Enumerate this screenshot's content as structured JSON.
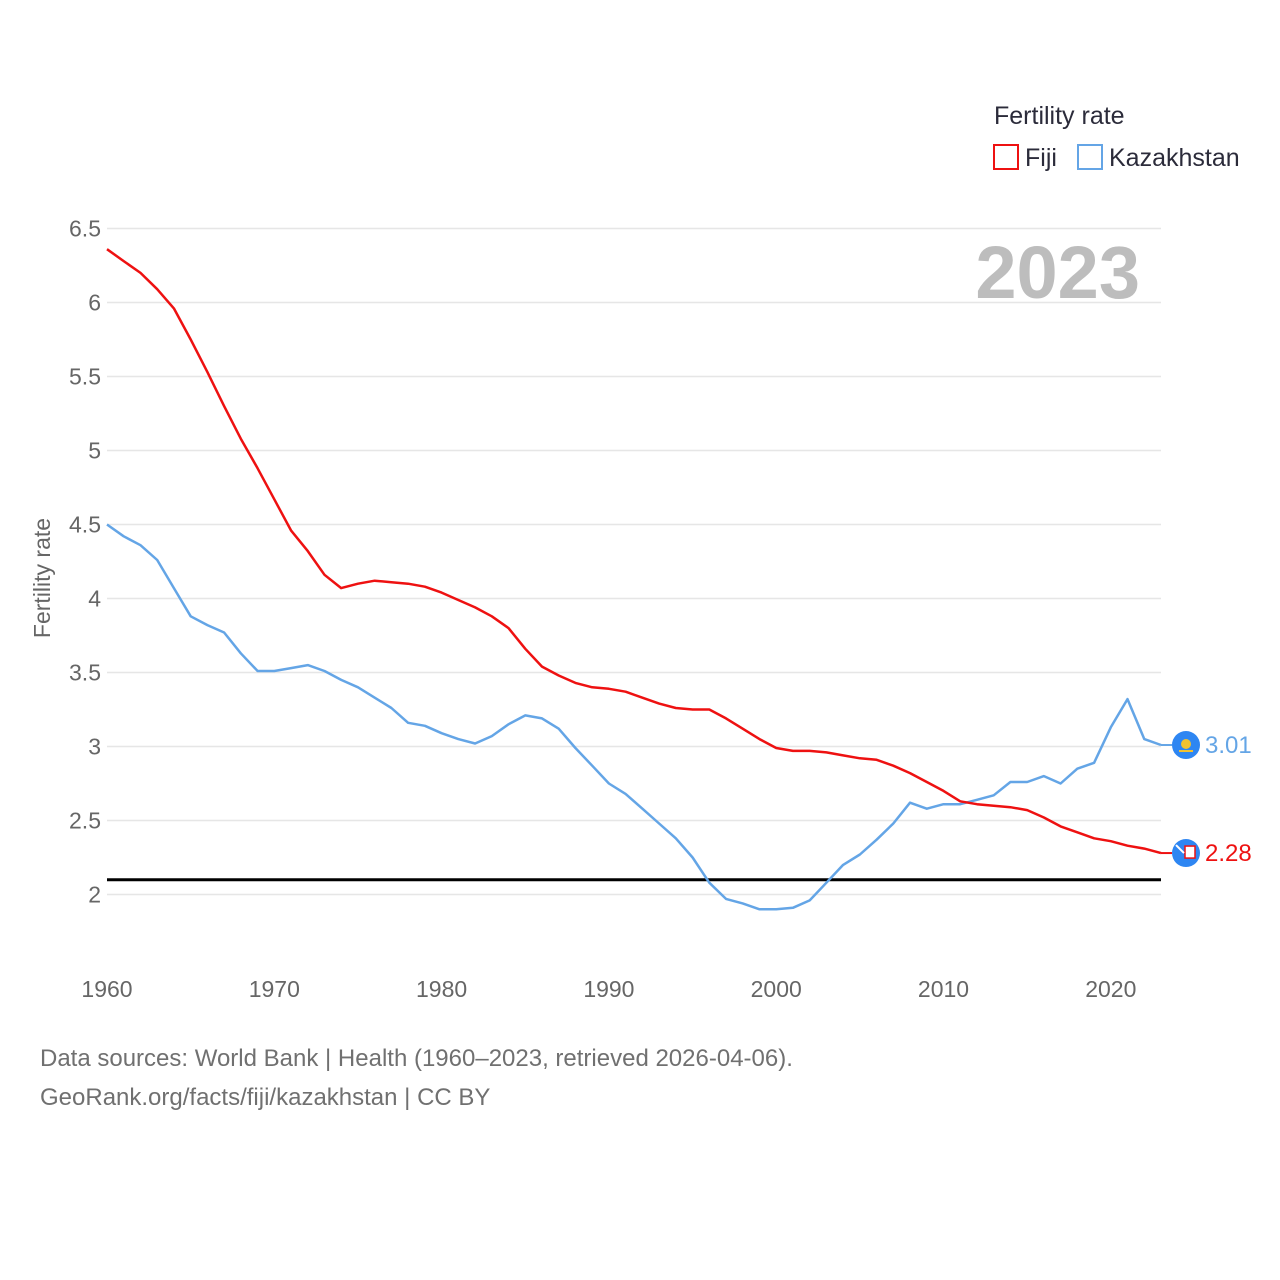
{
  "chart_data": {
    "type": "line",
    "title": "",
    "ylabel": "Fertility rate",
    "xlabel": "",
    "xlim": [
      1960,
      2023
    ],
    "ylim": [
      1.7,
      6.6
    ],
    "yticks": [
      2,
      2.5,
      3,
      3.5,
      4,
      4.5,
      5,
      5.5,
      6,
      6.5
    ],
    "ytick_labels": [
      "2",
      "2.5",
      "3",
      "3.5",
      "4",
      "4.5",
      "5",
      "5.5",
      "6",
      "6.5"
    ],
    "xticks": [
      1960,
      1970,
      1980,
      1990,
      2000,
      2010,
      2020
    ],
    "xtick_labels": [
      "1960",
      "1970",
      "1980",
      "1990",
      "2000",
      "2010",
      "2020"
    ],
    "grid": true,
    "year_label": "2023",
    "legend": {
      "title": "Fertility rate",
      "position": "top-right"
    },
    "reference_line": {
      "value": 2.1,
      "color": "#000000"
    },
    "series": [
      {
        "name": "Fiji",
        "color": "#ee1111",
        "end_label": "2.28",
        "x": [
          1960,
          1961,
          1962,
          1963,
          1964,
          1965,
          1966,
          1967,
          1968,
          1969,
          1970,
          1971,
          1972,
          1973,
          1974,
          1975,
          1976,
          1977,
          1978,
          1979,
          1980,
          1981,
          1982,
          1983,
          1984,
          1985,
          1986,
          1987,
          1988,
          1989,
          1990,
          1991,
          1992,
          1993,
          1994,
          1995,
          1996,
          1997,
          1998,
          1999,
          2000,
          2001,
          2002,
          2003,
          2004,
          2005,
          2006,
          2007,
          2008,
          2009,
          2010,
          2011,
          2012,
          2013,
          2014,
          2015,
          2016,
          2017,
          2018,
          2019,
          2020,
          2021,
          2022,
          2023
        ],
        "values": [
          6.36,
          6.28,
          6.2,
          6.09,
          5.96,
          5.75,
          5.53,
          5.3,
          5.08,
          4.88,
          4.67,
          4.46,
          4.32,
          4.16,
          4.07,
          4.1,
          4.12,
          4.11,
          4.1,
          4.08,
          4.04,
          3.99,
          3.94,
          3.88,
          3.8,
          3.66,
          3.54,
          3.48,
          3.43,
          3.4,
          3.39,
          3.37,
          3.33,
          3.29,
          3.26,
          3.25,
          3.25,
          3.19,
          3.12,
          3.05,
          2.99,
          2.97,
          2.97,
          2.96,
          2.94,
          2.92,
          2.91,
          2.87,
          2.82,
          2.76,
          2.7,
          2.63,
          2.61,
          2.6,
          2.59,
          2.57,
          2.52,
          2.46,
          2.42,
          2.38,
          2.36,
          2.33,
          2.31,
          2.28
        ]
      },
      {
        "name": "Kazakhstan",
        "color": "#64a5e6",
        "end_label": "3.01",
        "x": [
          1960,
          1961,
          1962,
          1963,
          1964,
          1965,
          1966,
          1967,
          1968,
          1969,
          1970,
          1971,
          1972,
          1973,
          1974,
          1975,
          1976,
          1977,
          1978,
          1979,
          1980,
          1981,
          1982,
          1983,
          1984,
          1985,
          1986,
          1987,
          1988,
          1989,
          1990,
          1991,
          1992,
          1993,
          1994,
          1995,
          1996,
          1997,
          1998,
          1999,
          2000,
          2001,
          2002,
          2003,
          2004,
          2005,
          2006,
          2007,
          2008,
          2009,
          2010,
          2011,
          2012,
          2013,
          2014,
          2015,
          2016,
          2017,
          2018,
          2019,
          2020,
          2021,
          2022,
          2023
        ],
        "values": [
          4.5,
          4.42,
          4.36,
          4.26,
          4.07,
          3.88,
          3.82,
          3.77,
          3.63,
          3.51,
          3.51,
          3.53,
          3.55,
          3.51,
          3.45,
          3.4,
          3.33,
          3.26,
          3.16,
          3.14,
          3.09,
          3.05,
          3.02,
          3.07,
          3.15,
          3.21,
          3.19,
          3.12,
          2.99,
          2.87,
          2.75,
          2.68,
          2.58,
          2.48,
          2.38,
          2.25,
          2.08,
          1.97,
          1.94,
          1.9,
          1.9,
          1.91,
          1.96,
          2.08,
          2.2,
          2.27,
          2.37,
          2.48,
          2.62,
          2.58,
          2.61,
          2.61,
          2.64,
          2.67,
          2.76,
          2.76,
          2.8,
          2.75,
          2.85,
          2.89,
          3.13,
          3.32,
          3.05,
          3.01
        ]
      }
    ]
  },
  "footer": {
    "source": "Data sources: World Bank | Health (1960–2023, retrieved 2026-04-06).",
    "attribution": "GeoRank.org/facts/fiji/kazakhstan | CC BY"
  }
}
